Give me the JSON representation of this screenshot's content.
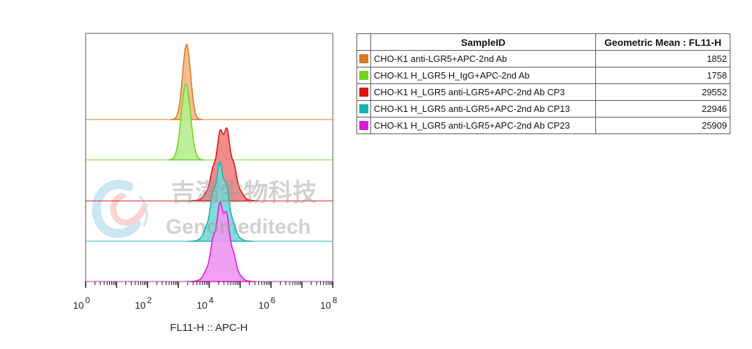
{
  "chart_data": {
    "type": "area",
    "subtype": "offset-histogram",
    "xlabel": "FL11-H :: APC-H",
    "x_scale": "log",
    "xlim": [
      1,
      100000000
    ],
    "x_ticks": [
      {
        "base": "10",
        "exp": "0"
      },
      {
        "base": "10",
        "exp": "2"
      },
      {
        "base": "10",
        "exp": "4"
      },
      {
        "base": "10",
        "exp": "6"
      },
      {
        "base": "10",
        "exp": "8"
      }
    ],
    "series": [
      {
        "name": "CHO-K1 anti-LGR5+APC-2nd Ab",
        "color": "#e07820",
        "fill": "#f3b884",
        "peak": 1852,
        "height": 1.0
      },
      {
        "name": "CHO-K1 H_LGR5 H_IgG+APC-2nd Ab",
        "color": "#6fd420",
        "fill": "#b6ec8e",
        "peak": 1758,
        "height": 0.88
      },
      {
        "name": "CHO-K1 H_LGR5 anti-LGR5+APC-2nd Ab CP3",
        "color": "#dd1414",
        "fill": "#ee8080",
        "peak": 29552,
        "height": 0.78
      },
      {
        "name": "CHO-K1 H_LGR5 anti-LGR5+APC-2nd Ab CP13",
        "color": "#14b4b4",
        "fill": "#74d6d6",
        "peak": 22946,
        "height": 0.82
      },
      {
        "name": "CHO-K1 H_LGR5 anti-LGR5+APC-2nd Ab CP23",
        "color": "#d81ad8",
        "fill": "#ef96ef",
        "peak": 25909,
        "height": 0.86
      }
    ]
  },
  "table": {
    "headers": [
      "SampleID",
      "Geometric Mean : FL11-H"
    ],
    "rows": [
      {
        "color": "#e07820",
        "sample": "CHO-K1 anti-LGR5+APC-2nd Ab",
        "value": "1852"
      },
      {
        "color": "#6fd420",
        "sample": "CHO-K1 H_LGR5 H_IgG+APC-2nd Ab",
        "value": "1758"
      },
      {
        "color": "#dd1414",
        "sample": "CHO-K1 H_LGR5 anti-LGR5+APC-2nd Ab CP3",
        "value": "29552"
      },
      {
        "color": "#14b4b4",
        "sample": "CHO-K1 H_LGR5 anti-LGR5+APC-2nd Ab CP13",
        "value": "22946"
      },
      {
        "color": "#d81ad8",
        "sample": "CHO-K1 H_LGR5 anti-LGR5+APC-2nd Ab CP23",
        "value": "25909"
      }
    ]
  },
  "watermark": {
    "cn": "吉满生物科技",
    "en": "Genomeditech"
  }
}
